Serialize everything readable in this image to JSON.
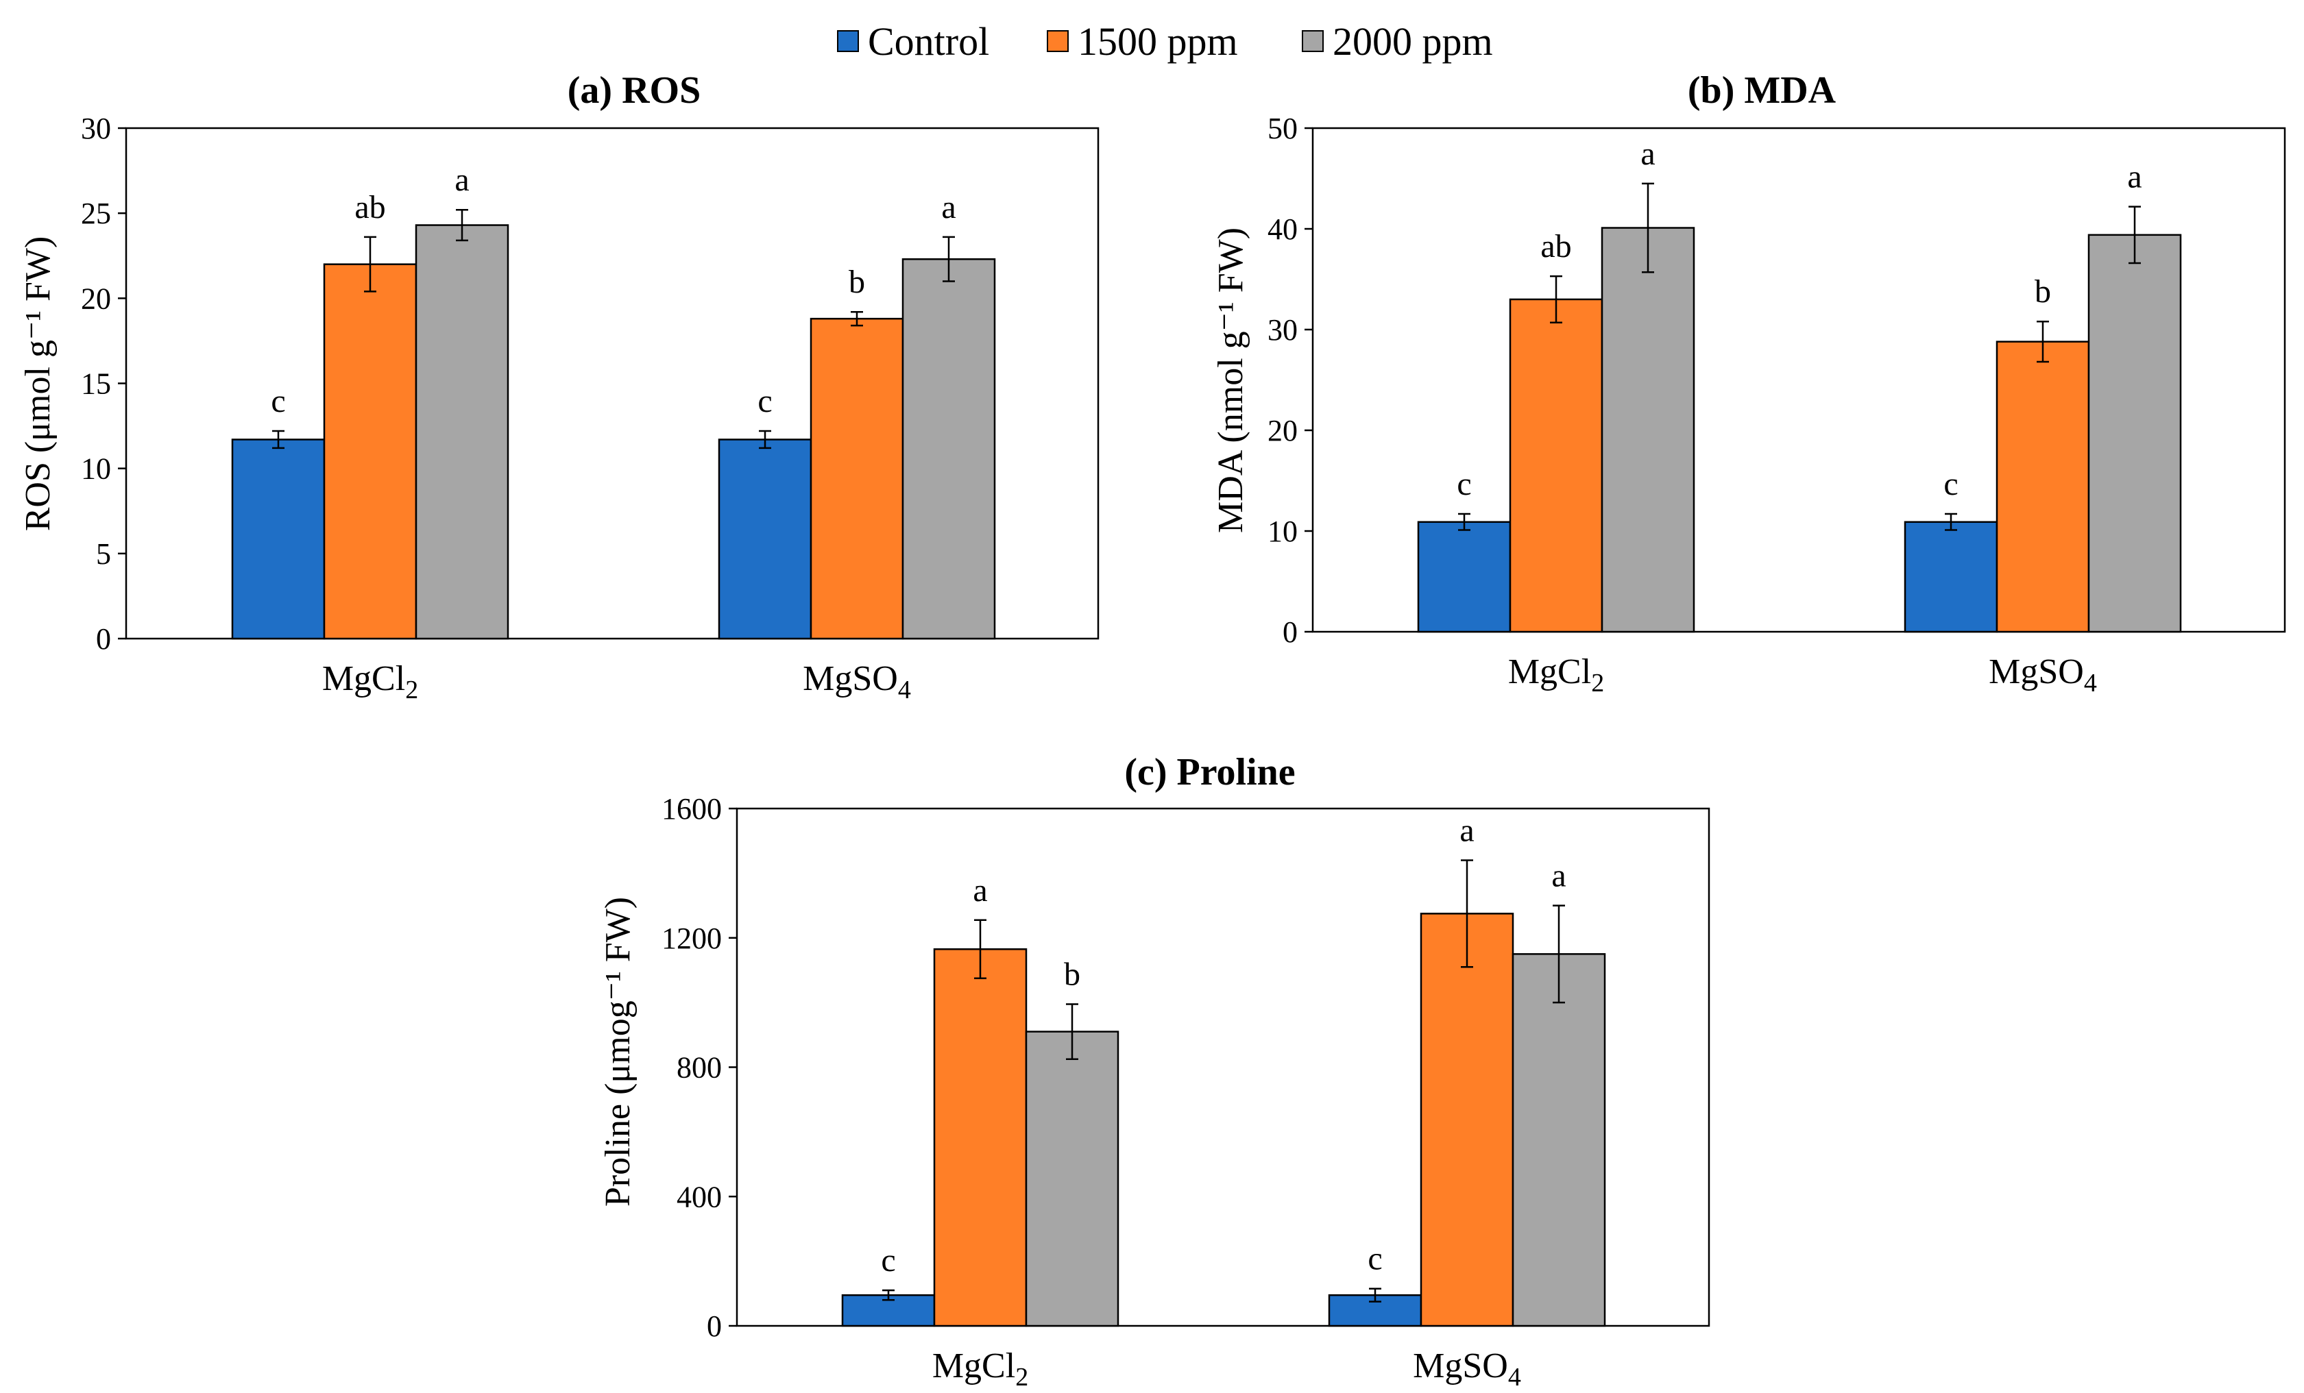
{
  "legend": {
    "entries": [
      {
        "label": "Control",
        "color": "#1F6FC6"
      },
      {
        "label": "1500 ppm",
        "color": "#FF7F27"
      },
      {
        "label": "2000 ppm",
        "color": "#A6A6A6"
      }
    ]
  },
  "chart_data": [
    {
      "type": "bar",
      "title": "(a) ROS",
      "ylabel": "ROS (μmol g⁻¹ FW)",
      "ylim": [
        0,
        30
      ],
      "yticks": [
        "0",
        "5",
        "10",
        "15",
        "20",
        "25",
        "30"
      ],
      "ytick_values": [
        0,
        5,
        10,
        15,
        20,
        25,
        30
      ],
      "categories": [
        {
          "base": "MgCl",
          "sub": "2"
        },
        {
          "base": "MgSO",
          "sub": "4"
        }
      ],
      "series": [
        {
          "name": "Control",
          "values": [
            11.7,
            11.7
          ],
          "errors": [
            0.5,
            0.5
          ],
          "letters": [
            "c",
            "c"
          ]
        },
        {
          "name": "1500 ppm",
          "values": [
            22.0,
            18.8
          ],
          "errors": [
            1.6,
            0.4
          ],
          "letters": [
            "ab",
            "b"
          ]
        },
        {
          "name": "2000 ppm",
          "values": [
            24.3,
            22.3
          ],
          "errors": [
            0.9,
            1.3
          ],
          "letters": [
            "a",
            "a"
          ]
        }
      ]
    },
    {
      "type": "bar",
      "title": "(b) MDA",
      "ylabel": "MDA (nmol g⁻¹ FW)",
      "ylim": [
        0,
        50
      ],
      "yticks": [
        "0",
        "10",
        "20",
        "30",
        "40",
        "50"
      ],
      "ytick_values": [
        0,
        10,
        20,
        30,
        40,
        50
      ],
      "categories": [
        {
          "base": "MgCl",
          "sub": "2"
        },
        {
          "base": "MgSO",
          "sub": "4"
        }
      ],
      "series": [
        {
          "name": "Control",
          "values": [
            10.9,
            10.9
          ],
          "errors": [
            0.8,
            0.8
          ],
          "letters": [
            "c",
            "c"
          ]
        },
        {
          "name": "1500 ppm",
          "values": [
            33.0,
            28.8
          ],
          "errors": [
            2.3,
            2.0
          ],
          "letters": [
            "ab",
            "b"
          ]
        },
        {
          "name": "2000 ppm",
          "values": [
            40.1,
            39.4
          ],
          "errors": [
            4.4,
            2.8
          ],
          "letters": [
            "a",
            "a"
          ]
        }
      ]
    },
    {
      "type": "bar",
      "title": "(c) Proline",
      "ylabel": "Proline (μmog⁻¹ FW)",
      "ylim": [
        0,
        1600
      ],
      "yticks": [
        "0",
        "400",
        "800",
        "1200",
        "1600"
      ],
      "ytick_values": [
        0,
        400,
        800,
        1200,
        1600
      ],
      "categories": [
        {
          "base": "MgCl",
          "sub": "2"
        },
        {
          "base": "MgSO",
          "sub": "4"
        }
      ],
      "series": [
        {
          "name": "Control",
          "values": [
            95,
            95
          ],
          "errors": [
            15,
            20
          ],
          "letters": [
            "c",
            "c"
          ]
        },
        {
          "name": "1500 ppm",
          "values": [
            1165,
            1275
          ],
          "errors": [
            90,
            165
          ],
          "letters": [
            "a",
            "a"
          ]
        },
        {
          "name": "2000 ppm",
          "values": [
            910,
            1150
          ],
          "errors": [
            85,
            150
          ],
          "letters": [
            "b",
            "a"
          ]
        }
      ]
    }
  ]
}
